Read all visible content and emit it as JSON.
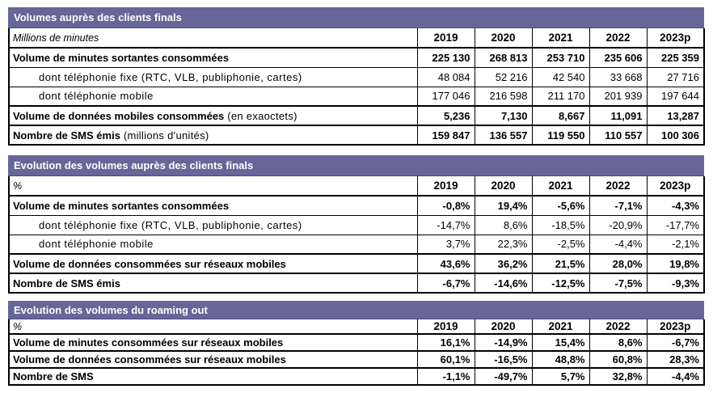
{
  "page": {
    "background": "#ffffff",
    "text_color": "#000000",
    "header_bg": "#666699",
    "header_text": "#ffffff"
  },
  "years": [
    "2019",
    "2020",
    "2021",
    "2022",
    "2023p"
  ],
  "tables": [
    {
      "title": "Volumes auprès des clients finals",
      "unit_label": "Millions de minutes",
      "rows": [
        {
          "label": "Volume de minutes sortantes consommées",
          "note": "",
          "style": "bold",
          "values": [
            "225 130",
            "268 813",
            "253 710",
            "235 606",
            "225 359"
          ]
        },
        {
          "label": "dont téléphonie fixe (RTC, VLB, publiphonie, cartes)",
          "note": "",
          "style": "indent",
          "values": [
            "48 084",
            "52 216",
            "42 540",
            "33 668",
            "27 716"
          ]
        },
        {
          "label": "dont téléphonie mobile",
          "note": "",
          "style": "indent",
          "values": [
            "177 046",
            "216 598",
            "211 170",
            "201 939",
            "197 644"
          ]
        },
        {
          "label": "Volume de données mobiles consommées",
          "note": "(en exaoctets)",
          "style": "bold",
          "values": [
            "5,236",
            "7,130",
            "8,667",
            "11,091",
            "13,287"
          ]
        },
        {
          "label": "Nombre de SMS émis",
          "note": "(millions d'unités)",
          "style": "bold",
          "values": [
            "159 847",
            "136 557",
            "119 550",
            "110 557",
            "100 306"
          ]
        }
      ]
    },
    {
      "title": "Evolution des volumes auprès des clients finals",
      "unit_label": "%",
      "rows": [
        {
          "label": "Volume de minutes sortantes consommées",
          "note": "",
          "style": "bold",
          "values": [
            "-0,8%",
            "19,4%",
            "-5,6%",
            "-7,1%",
            "-4,3%"
          ]
        },
        {
          "label": "dont téléphonie fixe (RTC, VLB, publiphonie, cartes)",
          "note": "",
          "style": "indent",
          "values": [
            "-14,7%",
            "8,6%",
            "-18,5%",
            "-20,9%",
            "-17,7%"
          ]
        },
        {
          "label": "dont téléphonie mobile",
          "note": "",
          "style": "indent",
          "values": [
            "3,7%",
            "22,3%",
            "-2,5%",
            "-4,4%",
            "-2,1%"
          ]
        },
        {
          "label": "Volume de données consommées sur réseaux mobiles",
          "note": "",
          "style": "bold",
          "values": [
            "43,6%",
            "36,2%",
            "21,5%",
            "28,0%",
            "19,8%"
          ]
        },
        {
          "label": "Nombre de SMS émis",
          "note": "",
          "style": "bold",
          "values": [
            "-6,7%",
            "-14,6%",
            "-12,5%",
            "-7,5%",
            "-9,3%"
          ]
        }
      ]
    },
    {
      "title": "Evolution des volumes du roaming out",
      "unit_label": "%",
      "rows": [
        {
          "label": "Volume de minutes consommées sur réseaux mobiles",
          "note": "",
          "style": "bold",
          "values": [
            "16,1%",
            "-14,9%",
            "15,4%",
            "8,6%",
            "-6,7%"
          ]
        },
        {
          "label": "Volume de données consommées sur réseaux mobiles",
          "note": "",
          "style": "bold",
          "values": [
            "60,1%",
            "-16,5%",
            "48,8%",
            "60,8%",
            "28,3%"
          ]
        },
        {
          "label": "Nombre de SMS",
          "note": "",
          "style": "bold",
          "values": [
            "-1,1%",
            "-49,7%",
            "5,7%",
            "32,8%",
            "-4,4%"
          ]
        }
      ]
    }
  ]
}
